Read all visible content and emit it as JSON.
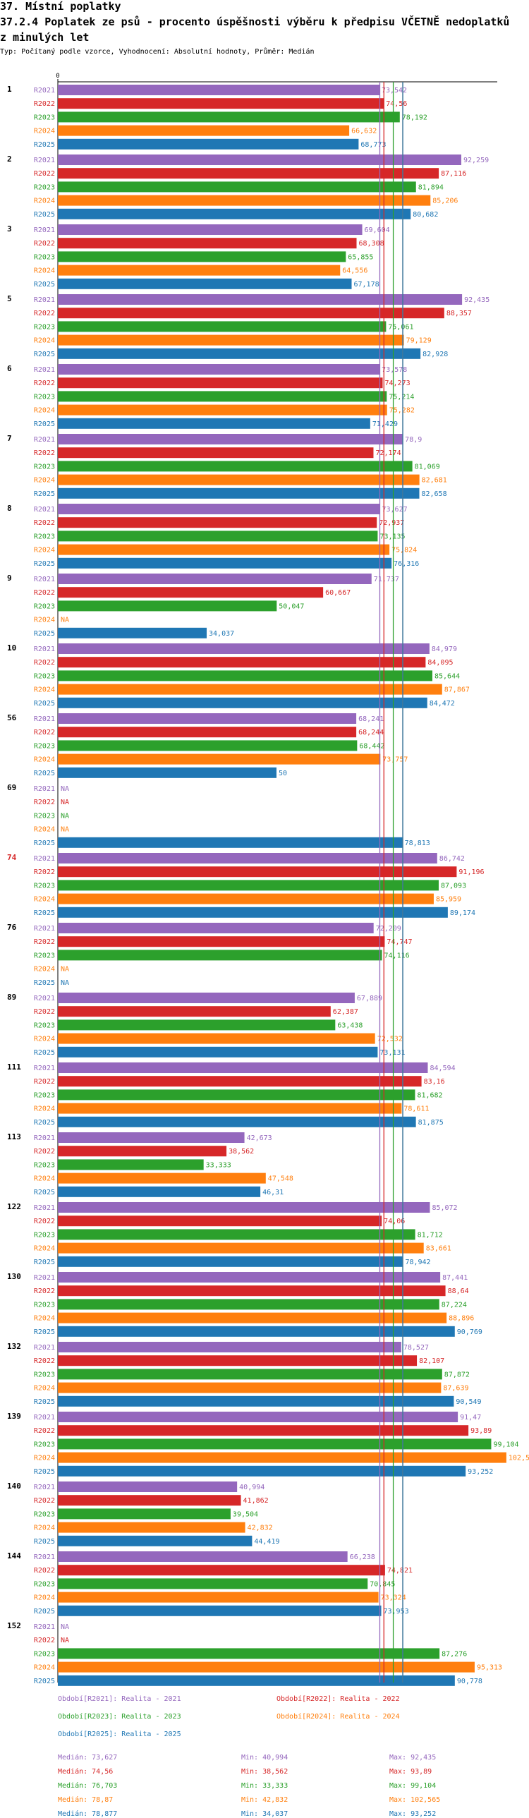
{
  "section_title": "37. Místní poplatky",
  "chart_title_line1": "37.2.4 Poplatek ze psů - procento úspěšnosti výběru k předpisu VČETNĚ nedoplatků",
  "chart_title_line2": "z minulých let",
  "subtitle": "Typ: Počítaný podle vzorce, Vyhodnocení: Absolutní hodnoty, Průměr: Medián",
  "na_label": "NA",
  "colors": {
    "R2021": "#9467bd",
    "R2022": "#d62728",
    "R2023": "#2ca02c",
    "R2024": "#ff7f0e",
    "R2025": "#1f77b4",
    "highlight_group": "#d62728",
    "axis": "#000000"
  },
  "chart_data": {
    "type": "bar",
    "orientation": "horizontal",
    "axis_zero_label": "0",
    "series_names": [
      "R2021",
      "R2022",
      "R2023",
      "R2024",
      "R2025"
    ],
    "groups": [
      {
        "label": "1",
        "highlight": false,
        "values": [
          73.542,
          74.56,
          78.192,
          66.632,
          68.773
        ],
        "labels": [
          "73,542",
          "74,56",
          "78,192",
          "66,632",
          "68,773"
        ]
      },
      {
        "label": "2",
        "highlight": false,
        "values": [
          92.259,
          87.116,
          81.894,
          85.206,
          80.682
        ],
        "labels": [
          "92,259",
          "87,116",
          "81,894",
          "85,206",
          "80,682"
        ]
      },
      {
        "label": "3",
        "highlight": false,
        "values": [
          69.604,
          68.308,
          65.855,
          64.556,
          67.178
        ],
        "labels": [
          "69,604",
          "68,308",
          "65,855",
          "64,556",
          "67,178"
        ]
      },
      {
        "label": "5",
        "highlight": false,
        "values": [
          92.435,
          88.357,
          75.061,
          79.129,
          82.928
        ],
        "labels": [
          "92,435",
          "88,357",
          "75,061",
          "79,129",
          "82,928"
        ]
      },
      {
        "label": "6",
        "highlight": false,
        "values": [
          73.578,
          74.273,
          75.214,
          75.282,
          71.429
        ],
        "labels": [
          "73,578",
          "74,273",
          "75,214",
          "75,282",
          "71,429"
        ]
      },
      {
        "label": "7",
        "highlight": false,
        "values": [
          78.9,
          72.174,
          81.069,
          82.681,
          82.658
        ],
        "labels": [
          "78,9",
          "72,174",
          "81,069",
          "82,681",
          "82,658"
        ]
      },
      {
        "label": "8",
        "highlight": false,
        "values": [
          73.627,
          72.937,
          73.135,
          75.824,
          76.316
        ],
        "labels": [
          "73,627",
          "72,937",
          "73,135",
          "75,824",
          "76,316"
        ]
      },
      {
        "label": "9",
        "highlight": false,
        "values": [
          71.737,
          60.667,
          50.047,
          null,
          34.037
        ],
        "labels": [
          "71,737",
          "60,667",
          "50,047",
          null,
          "34,037"
        ]
      },
      {
        "label": "10",
        "highlight": false,
        "values": [
          84.979,
          84.095,
          85.644,
          87.867,
          84.472
        ],
        "labels": [
          "84,979",
          "84,095",
          "85,644",
          "87,867",
          "84,472"
        ]
      },
      {
        "label": "56",
        "highlight": false,
        "values": [
          68.241,
          68.244,
          68.442,
          73.757,
          50
        ],
        "labels": [
          "68,241",
          "68,244",
          "68,442",
          "73,757",
          "50"
        ]
      },
      {
        "label": "69",
        "highlight": false,
        "values": [
          null,
          null,
          null,
          null,
          78.813
        ],
        "labels": [
          null,
          null,
          null,
          null,
          "78,813"
        ]
      },
      {
        "label": "74",
        "highlight": true,
        "values": [
          86.742,
          91.196,
          87.093,
          85.959,
          89.174
        ],
        "labels": [
          "86,742",
          "91,196",
          "87,093",
          "85,959",
          "89,174"
        ]
      },
      {
        "label": "76",
        "highlight": false,
        "values": [
          72.209,
          74.747,
          74.116,
          null,
          null
        ],
        "labels": [
          "72,209",
          "74,747",
          "74,116",
          null,
          null
        ]
      },
      {
        "label": "89",
        "highlight": false,
        "values": [
          67.889,
          62.387,
          63.438,
          72.532,
          73.131
        ],
        "labels": [
          "67,889",
          "62,387",
          "63,438",
          "72,532",
          "73,131"
        ]
      },
      {
        "label": "111",
        "highlight": false,
        "values": [
          84.594,
          83.16,
          81.682,
          78.611,
          81.875
        ],
        "labels": [
          "84,594",
          "83,16",
          "81,682",
          "78,611",
          "81,875"
        ]
      },
      {
        "label": "113",
        "highlight": false,
        "values": [
          42.673,
          38.562,
          33.333,
          47.548,
          46.31
        ],
        "labels": [
          "42,673",
          "38,562",
          "33,333",
          "47,548",
          "46,31"
        ]
      },
      {
        "label": "122",
        "highlight": false,
        "values": [
          85.072,
          74.06,
          81.712,
          83.661,
          78.942
        ],
        "labels": [
          "85,072",
          "74,06",
          "81,712",
          "83,661",
          "78,942"
        ]
      },
      {
        "label": "130",
        "highlight": false,
        "values": [
          87.441,
          88.64,
          87.224,
          88.896,
          90.769
        ],
        "labels": [
          "87,441",
          "88,64",
          "87,224",
          "88,896",
          "90,769"
        ]
      },
      {
        "label": "132",
        "highlight": false,
        "values": [
          78.527,
          82.107,
          87.872,
          87.639,
          90.549
        ],
        "labels": [
          "78,527",
          "82,107",
          "87,872",
          "87,639",
          "90,549"
        ]
      },
      {
        "label": "139",
        "highlight": false,
        "values": [
          91.47,
          93.89,
          99.104,
          102.565,
          93.252
        ],
        "labels": [
          "91,47",
          "93,89",
          "99,104",
          "102,565",
          "93,252"
        ]
      },
      {
        "label": "140",
        "highlight": false,
        "values": [
          40.994,
          41.862,
          39.504,
          42.832,
          44.419
        ],
        "labels": [
          "40,994",
          "41,862",
          "39,504",
          "42,832",
          "44,419"
        ]
      },
      {
        "label": "144",
        "highlight": false,
        "values": [
          66.238,
          74.821,
          70.845,
          73.324,
          73.953
        ],
        "labels": [
          "66,238",
          "74,821",
          "70,845",
          "73,324",
          "73,953"
        ]
      },
      {
        "label": "152",
        "highlight": false,
        "values": [
          null,
          null,
          87.276,
          95.313,
          90.778
        ],
        "labels": [
          null,
          null,
          "87,276",
          "95,313",
          "90,778"
        ]
      }
    ],
    "medians": [
      73.627,
      74.56,
      76.703,
      78.87,
      78.877
    ],
    "xlim": [
      0,
      107
    ]
  },
  "legend": [
    {
      "text": "Období[R2021]: Realita - 2021",
      "series": "R2021"
    },
    {
      "text": "Období[R2022]: Realita - 2022",
      "series": "R2022"
    },
    {
      "text": "Období[R2023]: Realita - 2023",
      "series": "R2023"
    },
    {
      "text": "Období[R2024]: Realita - 2024",
      "series": "R2024"
    },
    {
      "text": "Období[R2025]: Realita - 2025",
      "series": "R2025"
    }
  ],
  "stats": [
    {
      "series": "R2021",
      "median": "Medián: 73,627",
      "min": "Min: 40,994",
      "max": "Max: 92,435"
    },
    {
      "series": "R2022",
      "median": "Medián: 74,56",
      "min": "Min: 38,562",
      "max": "Max: 93,89"
    },
    {
      "series": "R2023",
      "median": "Medián: 76,703",
      "min": "Min: 33,333",
      "max": "Max: 99,104"
    },
    {
      "series": "R2024",
      "median": "Medián: 78,87",
      "min": "Min: 42,832",
      "max": "Max: 102,565"
    },
    {
      "series": "R2025",
      "median": "Medián: 78,877",
      "min": "Min: 34,037",
      "max": "Max: 93,252"
    }
  ]
}
